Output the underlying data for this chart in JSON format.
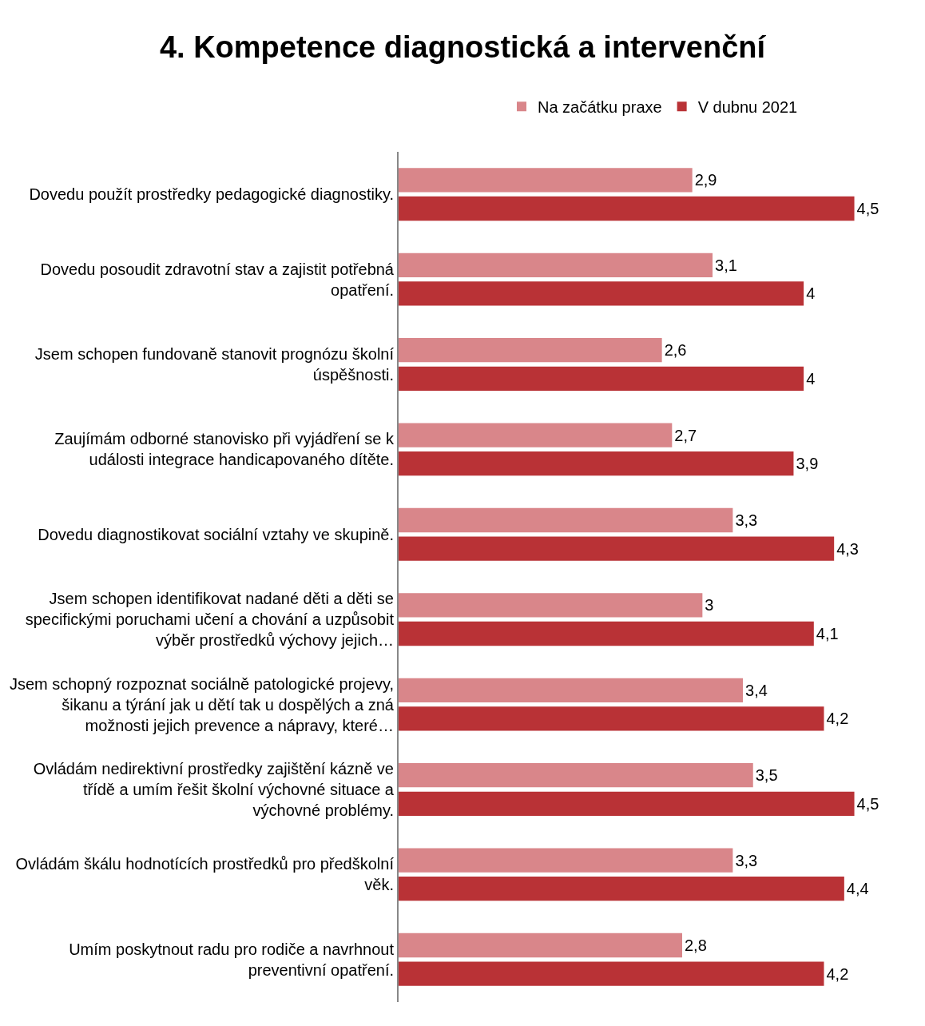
{
  "chart_data": {
    "type": "bar",
    "orientation": "horizontal",
    "title": "4. Kompetence diagnostická a intervenční",
    "categories": [
      "Dovedu použít prostředky pedagogické diagnostiky.",
      "Dovedu posoudit zdravotní stav a zajistit potřebná opatření.",
      "Jsem schopen fundovaně stanovit prognózu školní úspěšnosti.",
      "Zaujímám odborné stanovisko při vyjádření se k události integrace handicapovaného dítěte.",
      "Dovedu diagnostikovat sociální vztahy ve skupině.",
      "Jsem schopen identifikovat nadané děti a děti se specifickými poruchami učení a chování a uzpůsobit výběr prostředků výchovy jejich…",
      "Jsem schopný rozpoznat sociálně patologické projevy, šikanu a týrání jak u dětí tak u dospělých a zná možnosti jejich prevence a nápravy, které…",
      "Ovládám nedirektivní prostředky zajištění kázně ve třídě a umím řešit školní výchovné situace a výchovné problémy.",
      "Ovládám škálu hodnotících prostředků pro předškolní věk.",
      "Umím poskytnout radu pro rodiče a navrhnout preventivní opatření."
    ],
    "series": [
      {
        "name": "Na začátku praxe",
        "color": "#d9868a",
        "values": [
          2.9,
          3.1,
          2.6,
          2.7,
          3.3,
          3,
          3.4,
          3.5,
          3.3,
          2.8
        ],
        "value_labels": [
          "2,9",
          "3,1",
          "2,6",
          "2,7",
          "3,3",
          "3",
          "3,4",
          "3,5",
          "3,3",
          "2,8"
        ]
      },
      {
        "name": "V dubnu 2021",
        "color": "#b93236",
        "values": [
          4.5,
          4,
          4,
          3.9,
          4.3,
          4.1,
          4.2,
          4.5,
          4.4,
          4.2
        ],
        "value_labels": [
          "4,5",
          "4",
          "4",
          "3,9",
          "4,3",
          "4,1",
          "4,2",
          "4,5",
          "4,4",
          "4,2"
        ]
      }
    ],
    "legend": "top",
    "grid": false
  }
}
